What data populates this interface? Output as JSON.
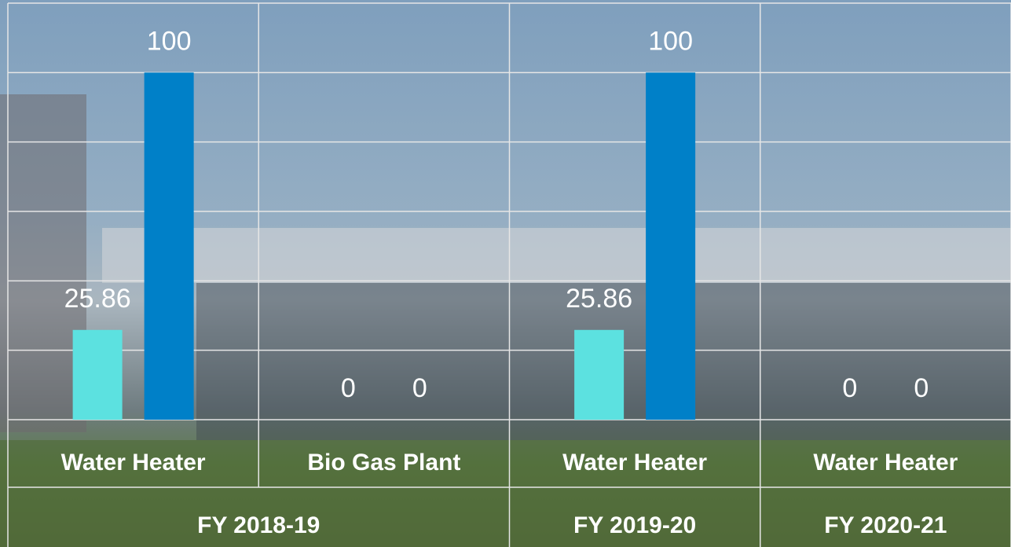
{
  "chart_data": {
    "type": "bar",
    "categories": [
      "Water Heater",
      "Bio Gas Plant",
      "Water Heater",
      "Water Heater"
    ],
    "group_labels": [
      "FY 2018-19",
      null,
      "FY 2019-20",
      "FY 2020-21"
    ],
    "series": [
      {
        "color": "#5ce1e0",
        "values": [
          25.86,
          0,
          25.86,
          0
        ]
      },
      {
        "color": "#0080c8",
        "values": [
          100,
          0,
          100,
          0
        ]
      }
    ],
    "ylim": [
      0,
      120
    ],
    "yticks": [
      0,
      20,
      40,
      60,
      80,
      100,
      120
    ],
    "grid": true
  }
}
